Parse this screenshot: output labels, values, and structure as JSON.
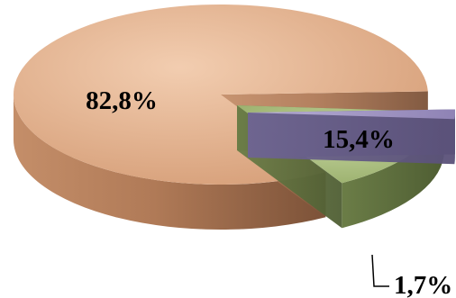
{
  "chart_data": {
    "type": "pie",
    "style": "3d-exploded",
    "title": "",
    "slices": [
      {
        "label": "82,8%",
        "value": 82.8,
        "color": "#E3B08A"
      },
      {
        "label": "15,4%",
        "value": 15.4,
        "color": "#A9BD7C"
      },
      {
        "label": "1,7%",
        "value": 1.7,
        "color": "#A69AC6"
      }
    ],
    "legend": "none"
  }
}
